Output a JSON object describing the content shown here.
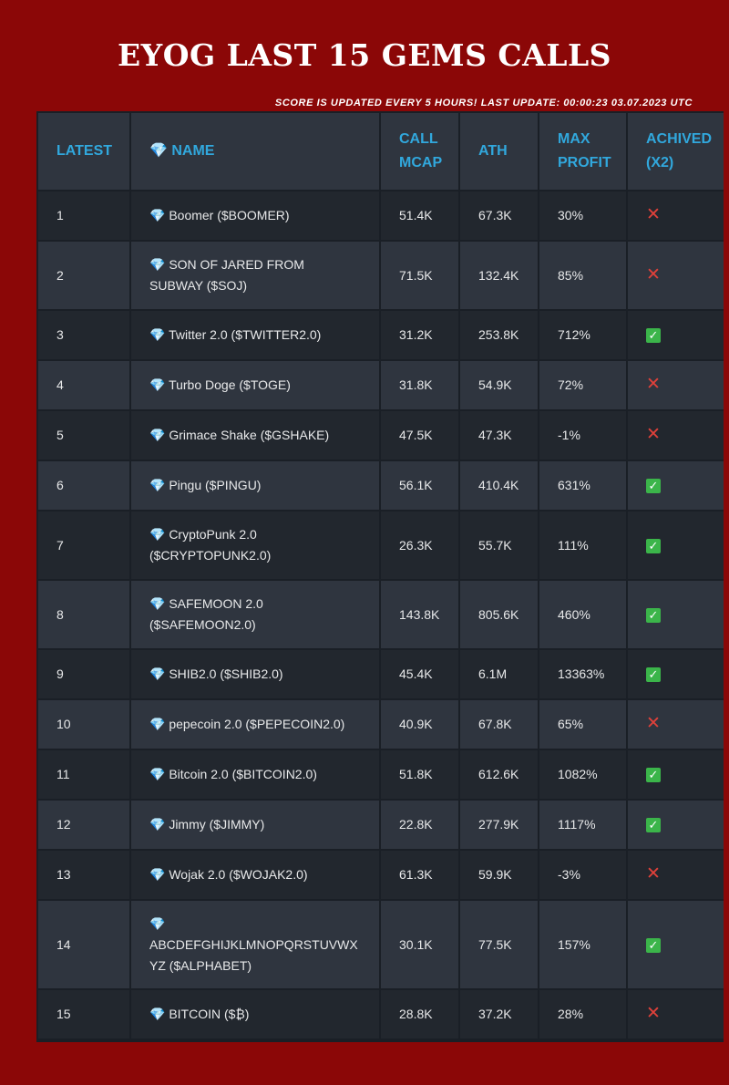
{
  "page": {
    "title": "EYOG LAST 15 GEMS CALLS",
    "subtitle": "SCORE IS UPDATED EVERY 5 HOURS! LAST UPDATE: 00:00:23 03.07.2023 UTC"
  },
  "table": {
    "headers": {
      "latest": "LATEST",
      "name": "💎 NAME",
      "call_mcap": "CALL MCAP",
      "ath": "ATH",
      "max_profit": "MAX PROFIT",
      "achived": "ACHIVED (x2)"
    },
    "rows": [
      {
        "latest": "1",
        "name": "💎 Boomer ($BOOMER)",
        "call_mcap": "51.4K",
        "ath": "67.3K",
        "max_profit": "30%",
        "achived": "❌",
        "achived_value": false
      },
      {
        "latest": "2",
        "name": "💎 SON OF JARED FROM SUBWAY ($SOJ)",
        "call_mcap": "71.5K",
        "ath": "132.4K",
        "max_profit": "85%",
        "achived": "❌",
        "achived_value": false
      },
      {
        "latest": "3",
        "name": "💎 Twitter 2.0 ($TWITTER2.0)",
        "call_mcap": "31.2K",
        "ath": "253.8K",
        "max_profit": "712%",
        "achived": "✅",
        "achived_value": true
      },
      {
        "latest": "4",
        "name": "💎 Turbo Doge ($TOGE)",
        "call_mcap": "31.8K",
        "ath": "54.9K",
        "max_profit": "72%",
        "achived": "❌",
        "achived_value": false
      },
      {
        "latest": "5",
        "name": "💎 Grimace Shake ($GSHAKE)",
        "call_mcap": "47.5K",
        "ath": "47.3K",
        "max_profit": "-1%",
        "achived": "❌",
        "achived_value": false
      },
      {
        "latest": "6",
        "name": "💎 Pingu ($PINGU)",
        "call_mcap": "56.1K",
        "ath": "410.4K",
        "max_profit": "631%",
        "achived": "✅",
        "achived_value": true
      },
      {
        "latest": "7",
        "name": "💎 CryptoPunk 2.0 ($CRYPTOPUNK2.0)",
        "call_mcap": "26.3K",
        "ath": "55.7K",
        "max_profit": "111%",
        "achived": "✅",
        "achived_value": true
      },
      {
        "latest": "8",
        "name": "💎 SAFEMOON 2.0 ($SAFEMOON2.0)",
        "call_mcap": "143.8K",
        "ath": "805.6K",
        "max_profit": "460%",
        "achived": "✅",
        "achived_value": true
      },
      {
        "latest": "9",
        "name": "💎 SHIB2.0 ($SHIB2.0)",
        "call_mcap": "45.4K",
        "ath": "6.1M",
        "max_profit": "13363%",
        "achived": "✅",
        "achived_value": true
      },
      {
        "latest": "10",
        "name": "💎 pepecoin 2.0 ($PEPECOIN2.0)",
        "call_mcap": "40.9K",
        "ath": "67.8K",
        "max_profit": "65%",
        "achived": "❌",
        "achived_value": false
      },
      {
        "latest": "11",
        "name": "💎 Bitcoin 2.0 ($BITCOIN2.0)",
        "call_mcap": "51.8K",
        "ath": "612.6K",
        "max_profit": "1082%",
        "achived": "✅",
        "achived_value": true
      },
      {
        "latest": "12",
        "name": "💎 Jimmy ($JIMMY)",
        "call_mcap": "22.8K",
        "ath": "277.9K",
        "max_profit": "1117%",
        "achived": "✅",
        "achived_value": true
      },
      {
        "latest": "13",
        "name": "💎 Wojak 2.0 ($WOJAK2.0)",
        "call_mcap": "61.3K",
        "ath": "59.9K",
        "max_profit": "-3%",
        "achived": "❌",
        "achived_value": false
      },
      {
        "latest": "14",
        "name": "💎 ABCDEFGHIJKLMNOPQRSTUVWXYZ ($ALPHABET)",
        "call_mcap": "30.1K",
        "ath": "77.5K",
        "max_profit": "157%",
        "achived": "✅",
        "achived_value": true
      },
      {
        "latest": "15",
        "name": "💎 BITCOIN ($₿)",
        "call_mcap": "28.8K",
        "ath": "37.2K",
        "max_profit": "28%",
        "achived": "❌",
        "achived_value": false
      }
    ]
  }
}
